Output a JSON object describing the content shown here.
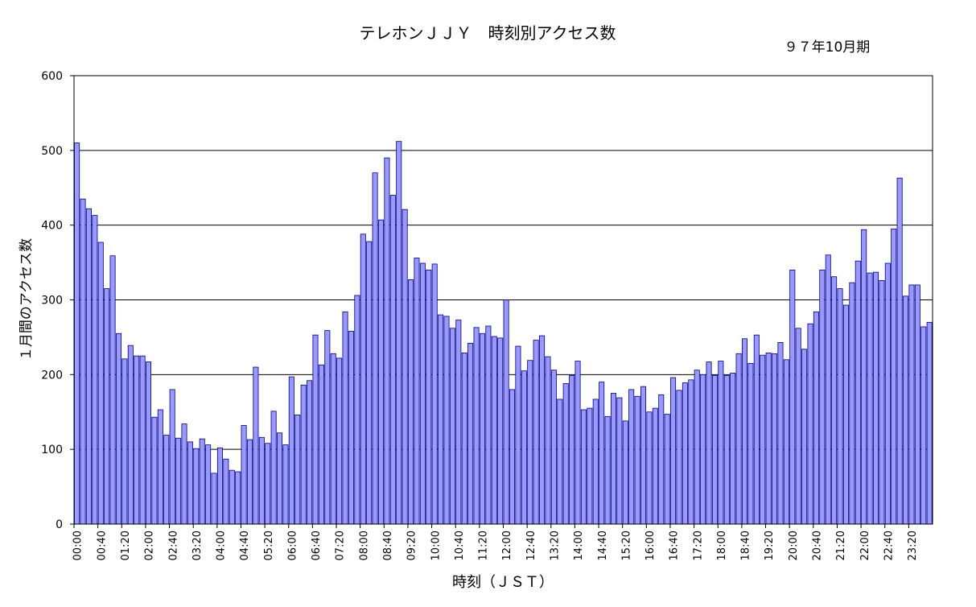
{
  "chart_data": {
    "type": "bar",
    "title": "テレホンＪＪＹ　時刻別アクセス数",
    "subtitle": "９７年10月期",
    "xlabel": "時刻（ＪＳＴ）",
    "ylabel": "１月間のアクセス数",
    "ylim": [
      0,
      600
    ],
    "yticks": [
      0,
      100,
      200,
      300,
      400,
      500,
      600
    ],
    "grid": true,
    "bar_color": "#9999ff",
    "bar_edge_color": "#000080",
    "x_tick_labels": [
      "00:00",
      "00:40",
      "01:20",
      "02:00",
      "02:40",
      "03:20",
      "04:00",
      "04:40",
      "05:20",
      "06:00",
      "06:40",
      "07:20",
      "08:00",
      "08:40",
      "09:20",
      "10:00",
      "10:40",
      "11:20",
      "12:00",
      "12:40",
      "13:20",
      "14:00",
      "14:40",
      "15:20",
      "16:00",
      "16:40",
      "17:20",
      "18:00",
      "18:40",
      "19:20",
      "20:00",
      "20:40",
      "21:20",
      "22:00",
      "22:40",
      "23:20"
    ],
    "values": [
      510,
      435,
      422,
      413,
      377,
      315,
      359,
      255,
      221,
      239,
      225,
      225,
      217,
      143,
      153,
      119,
      180,
      115,
      134,
      110,
      101,
      114,
      106,
      68,
      102,
      87,
      72,
      70,
      132,
      113,
      210,
      116,
      108,
      151,
      122,
      106,
      197,
      146,
      186,
      192,
      253,
      213,
      259,
      228,
      222,
      284,
      258,
      306,
      388,
      378,
      470,
      407,
      490,
      440,
      512,
      421,
      327,
      356,
      349,
      340,
      348,
      280,
      278,
      262,
      273,
      229,
      242,
      263,
      255,
      265,
      251,
      249,
      300,
      180,
      238,
      205,
      219,
      246,
      252,
      224,
      206,
      167,
      188,
      199,
      218,
      153,
      155,
      167,
      190,
      144,
      175,
      169,
      138,
      180,
      171,
      184,
      150,
      155,
      173,
      147,
      196,
      179,
      189,
      193,
      206,
      200,
      217,
      199,
      218,
      199,
      202,
      228,
      248,
      215,
      253,
      226,
      229,
      228,
      243,
      220,
      340,
      262,
      234,
      268,
      284,
      340,
      360,
      331,
      315,
      293,
      323,
      352,
      394,
      336,
      337,
      326,
      349,
      395,
      463,
      305,
      320,
      320,
      264,
      270
    ]
  }
}
